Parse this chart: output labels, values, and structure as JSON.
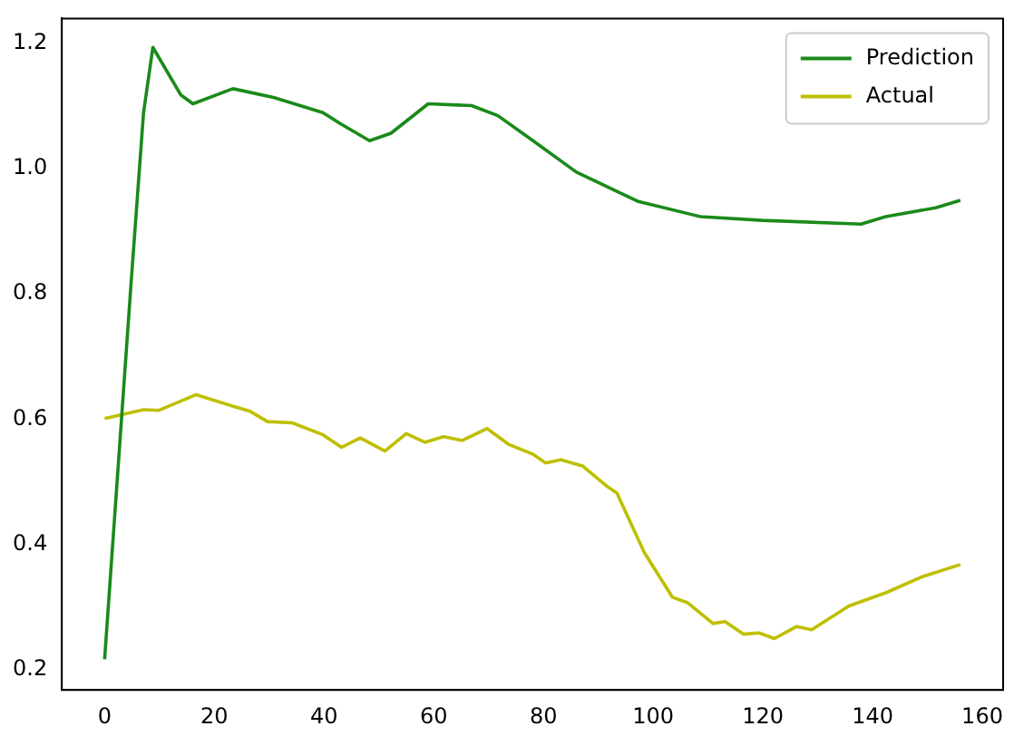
{
  "chart_data": {
    "type": "line",
    "xlim": [
      -7.8,
      163.8
    ],
    "ylim": [
      0.168,
      1.239
    ],
    "xticks": [
      0,
      20,
      40,
      60,
      80,
      100,
      120,
      140,
      160
    ],
    "yticks": [
      0.2,
      0.4,
      0.6,
      0.8,
      {
        "value": 1,
        "label": "1.0"
      },
      1.2
    ],
    "grid": false,
    "legend": "top right",
    "marker": "none",
    "line_style": "solid",
    "series": [
      {
        "name": "Prediction",
        "color": "#1a8a1a",
        "x": [
          0,
          4.8,
          7.1,
          8.8,
          13.9,
          16.1,
          23.4,
          30.8,
          39.8,
          43.2,
          48.3,
          52.2,
          59,
          66.9,
          71.7,
          78.1,
          86,
          97.3,
          108.6,
          119.9,
          137.9,
          142.4,
          151.5,
          156
        ],
        "values": [
          0.217,
          0.814,
          1.089,
          1.193,
          1.117,
          1.103,
          1.127,
          1.113,
          1.089,
          1.07,
          1.044,
          1.056,
          1.103,
          1.1,
          1.084,
          1.044,
          0.994,
          0.947,
          0.923,
          0.917,
          0.911,
          0.923,
          0.937,
          0.949
        ]
      },
      {
        "name": "Actual",
        "color": "#bfbf00",
        "x": [
          0,
          7.1,
          9.9,
          16.7,
          23.6,
          26.4,
          29.7,
          34.2,
          39.8,
          43.2,
          46.6,
          51.1,
          55,
          58.4,
          61.8,
          65.2,
          69.7,
          73.6,
          78.1,
          80.4,
          83.2,
          87.2,
          91.7,
          93.4,
          98.4,
          103.5,
          106.3,
          110.9,
          113.1,
          116.5,
          119.3,
          122.1,
          126.1,
          128.9,
          135.7,
          142.4,
          149.2,
          156
        ],
        "values": [
          0.601,
          0.615,
          0.614,
          0.639,
          0.62,
          0.613,
          0.596,
          0.594,
          0.575,
          0.555,
          0.57,
          0.549,
          0.577,
          0.563,
          0.572,
          0.566,
          0.585,
          0.56,
          0.544,
          0.53,
          0.535,
          0.525,
          0.492,
          0.482,
          0.387,
          0.316,
          0.307,
          0.274,
          0.277,
          0.257,
          0.259,
          0.25,
          0.269,
          0.264,
          0.302,
          0.323,
          0.349,
          0.368
        ]
      }
    ]
  }
}
